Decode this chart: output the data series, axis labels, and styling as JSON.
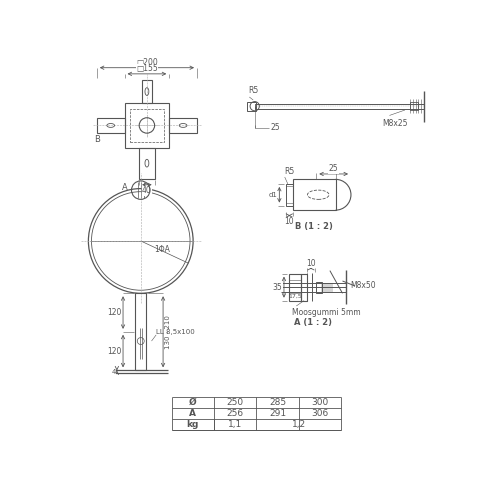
{
  "bg_color": "#ffffff",
  "line_color": "#555555",
  "dim_color": "#555555",
  "table": {
    "headers": [
      "Ø",
      "250",
      "285",
      "300"
    ],
    "rows": [
      [
        "A",
        "256",
        "291",
        "306"
      ],
      [
        "kg",
        "1,1",
        "1,2",
        ""
      ]
    ]
  }
}
